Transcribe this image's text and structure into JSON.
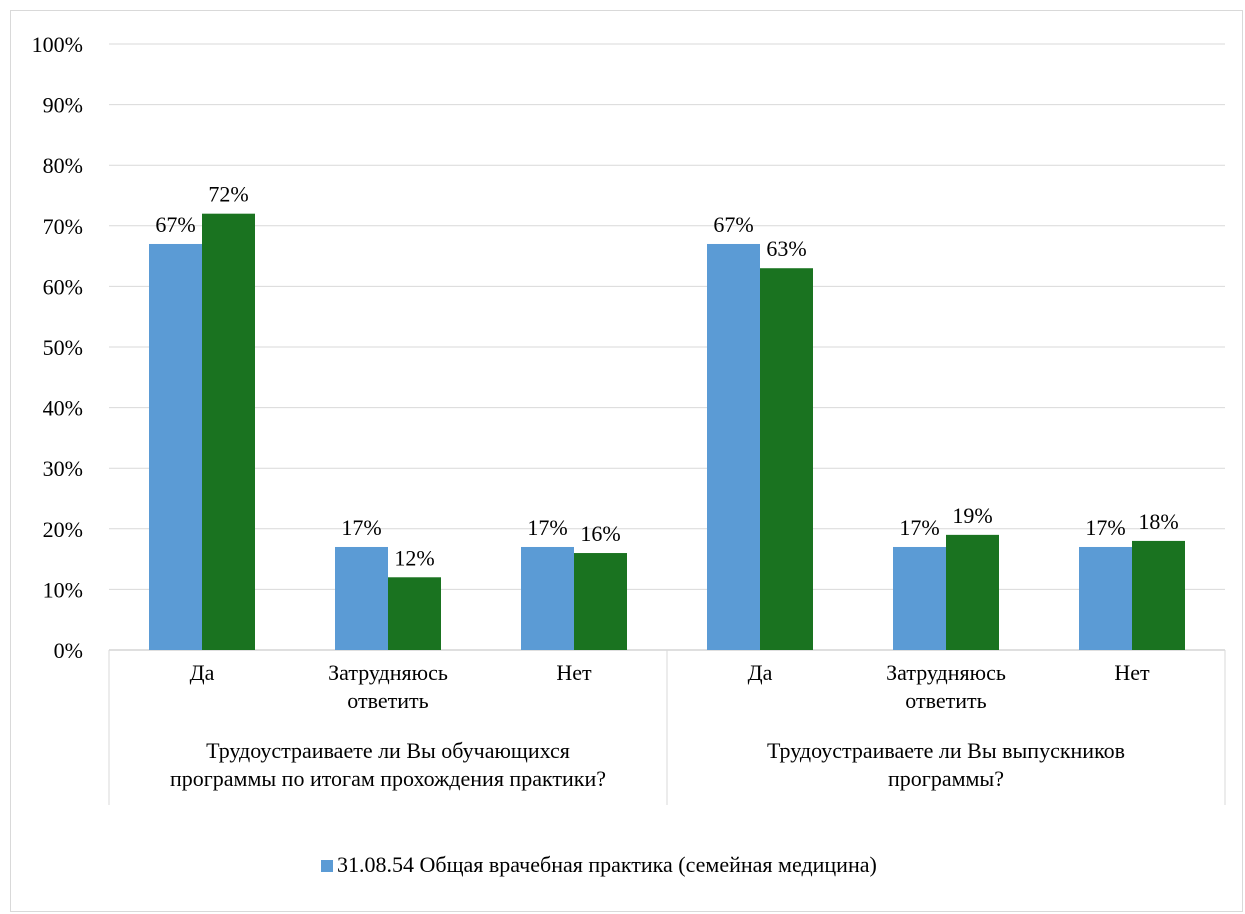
{
  "chart_data": {
    "type": "bar",
    "title": "",
    "xlabel": "",
    "ylabel": "",
    "ylim": [
      0,
      100
    ],
    "y_ticks": [
      "0%",
      "10%",
      "20%",
      "30%",
      "40%",
      "50%",
      "60%",
      "70%",
      "80%",
      "90%",
      "100%"
    ],
    "grid": true,
    "legend_position": "bottom",
    "groups": [
      {
        "label_lines": [
          "Трудоустраиваете ли Вы обучающихся",
          "программы по итогам прохождения практики?"
        ],
        "categories": [
          {
            "label_lines": [
              "Да"
            ]
          },
          {
            "label_lines": [
              "Затрудняюсь",
              "ответить"
            ]
          },
          {
            "label_lines": [
              "Нет"
            ]
          }
        ]
      },
      {
        "label_lines": [
          "Трудоустраиваете ли Вы выпускников",
          "программы?"
        ],
        "categories": [
          {
            "label_lines": [
              "Да"
            ]
          },
          {
            "label_lines": [
              "Затрудняюсь",
              "ответить"
            ]
          },
          {
            "label_lines": [
              "Нет"
            ]
          }
        ]
      }
    ],
    "series": [
      {
        "name": "31.08.54 Общая врачебная практика (семейная медицина)",
        "color": "#5b9bd5",
        "values": [
          67,
          17,
          17,
          67,
          17,
          17
        ],
        "labels": [
          "67%",
          "17%",
          "17%",
          "67%",
          "17%",
          "17%"
        ]
      },
      {
        "color": "#1a7320",
        "values": [
          72,
          12,
          16,
          63,
          19,
          18
        ],
        "labels": [
          "72%",
          "12%",
          "16%",
          "63%",
          "19%",
          "18%"
        ]
      }
    ]
  }
}
